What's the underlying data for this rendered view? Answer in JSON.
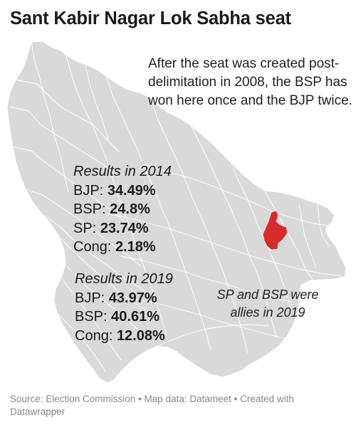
{
  "title": "Sant Kabir Nagar Lok Sabha seat",
  "intro": "After the seat was created post-delimitation in 2008, the BSP has won here once and the BJP twice.",
  "results_2014": {
    "heading": "Results in 2014",
    "rows": [
      {
        "party": "BJP:",
        "value": "34.49%"
      },
      {
        "party": "BSP:",
        "value": "24.8%"
      },
      {
        "party": "SP:",
        "value": "23.74%"
      },
      {
        "party": "Cong:",
        "value": "2.18%"
      }
    ]
  },
  "results_2019": {
    "heading": "Results in 2019",
    "rows": [
      {
        "party": "BJP:",
        "value": "43.97%"
      },
      {
        "party": "BSP:",
        "value": "40.61%"
      },
      {
        "party": "Cong:",
        "value": "12.08%"
      }
    ]
  },
  "note": "SP and BSP were allies in 2019",
  "source": "Source: Election Commission • Map data: Datameet • Created with Datawrapper",
  "colors": {
    "map_fill": "#d9d9d9",
    "map_border": "#ffffff",
    "highlight": "#d82b2b"
  }
}
